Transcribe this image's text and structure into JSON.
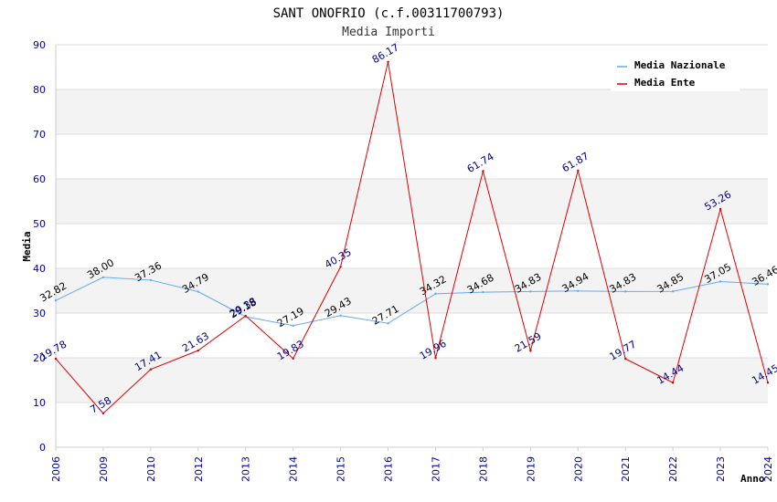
{
  "chart_data": {
    "type": "line",
    "title": "SANT ONOFRIO (c.f.00311700793)",
    "subtitle": "Media Importi",
    "xlabel": "Anno",
    "ylabel": "Media",
    "ylim": [
      0,
      90
    ],
    "yticks": [
      0,
      10,
      20,
      30,
      40,
      50,
      60,
      70,
      80,
      90
    ],
    "categories": [
      "2006",
      "2009",
      "2010",
      "2012",
      "2013",
      "2014",
      "2015",
      "2016",
      "2017",
      "2018",
      "2019",
      "2020",
      "2021",
      "2022",
      "2023",
      "2024"
    ],
    "series": [
      {
        "name": "Media Nazionale",
        "color": "#66aaee",
        "values": [
          32.82,
          38.0,
          37.36,
          34.79,
          29.18,
          27.19,
          29.43,
          27.71,
          34.32,
          34.68,
          34.83,
          34.94,
          34.83,
          34.85,
          37.05,
          36.46
        ],
        "labels": [
          "32.82",
          "38.00",
          "37.36",
          "34.79",
          "29.18",
          "27.19",
          "29.43",
          "27.71",
          "34.32",
          "34.68",
          "34.83",
          "34.94",
          "34.83",
          "34.85",
          "37.05",
          "36.46"
        ]
      },
      {
        "name": "Media Ente",
        "color": "#dd0000",
        "values": [
          19.78,
          7.58,
          17.41,
          21.63,
          29.38,
          19.83,
          40.35,
          86.17,
          19.96,
          61.74,
          21.59,
          61.87,
          19.77,
          14.44,
          53.26,
          14.45
        ],
        "labels": [
          "19.78",
          "7.58",
          "17.41",
          "21.63",
          "29.38",
          "19.83",
          "40.35",
          "86.17",
          "19.96",
          "61.74",
          "21.59",
          "61.87",
          "19.77",
          "14.44",
          "53.26",
          "14.45"
        ]
      }
    ],
    "grid": true,
    "legend": "top-right"
  }
}
